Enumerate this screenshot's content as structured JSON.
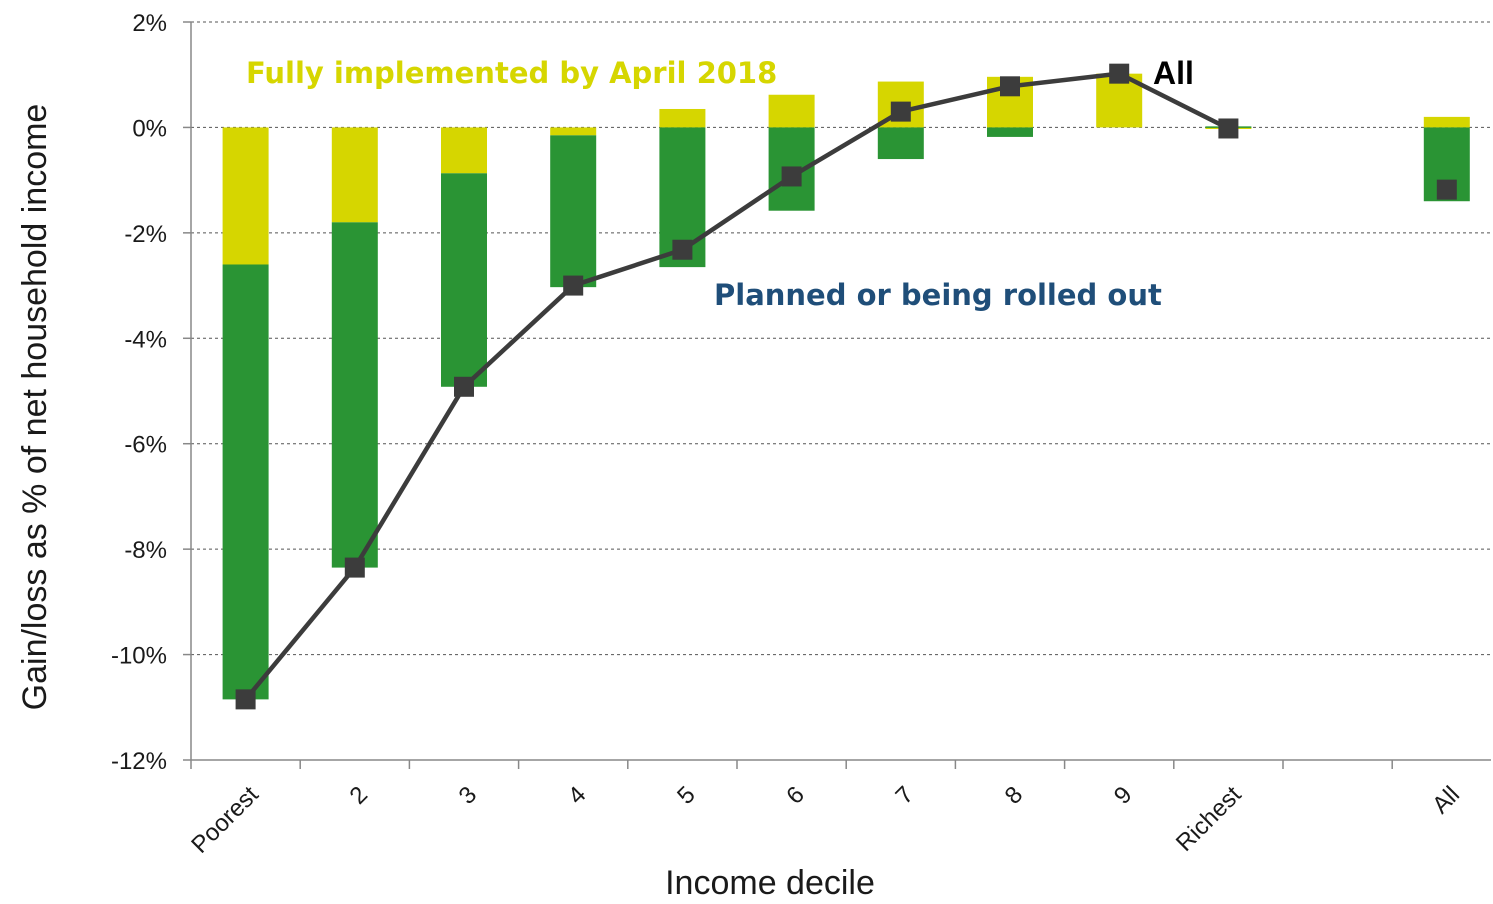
{
  "chart_data": {
    "type": "bar",
    "stacked": true,
    "xlabel": "Income decile",
    "ylabel": "Gain/loss as % of net household income",
    "ylim": [
      -12,
      2
    ],
    "yticks": [
      2,
      0,
      -2,
      -4,
      -6,
      -8,
      -10,
      -12
    ],
    "ytick_labels": [
      "2%",
      "0%",
      "-2%",
      "-4%",
      "-6%",
      "-8%",
      "-10%",
      "-12%"
    ],
    "grid": "horizontal dashed",
    "categories": [
      "Poorest",
      "2",
      "3",
      "4",
      "5",
      "6",
      "7",
      "8",
      "9",
      "Richest",
      "All"
    ],
    "category_slots": [
      0,
      1,
      2,
      3,
      4,
      5,
      6,
      7,
      8,
      9,
      11
    ],
    "series": [
      {
        "name": "Fully implemented by April 2018",
        "color": "#d6d600",
        "values": [
          -2.6,
          -1.8,
          -0.87,
          -0.15,
          0.35,
          0.62,
          0.87,
          0.96,
          1.02,
          -0.03,
          0.2
        ]
      },
      {
        "name": "Planned or being rolled out",
        "color": "#2a9434",
        "values": [
          -8.25,
          -6.55,
          -4.05,
          -2.88,
          -2.65,
          -1.58,
          -0.6,
          -0.18,
          0.0,
          0.02,
          -1.4
        ]
      },
      {
        "name": "All",
        "color": "#3c3c3c",
        "values": [
          -10.85,
          -8.35,
          -4.92,
          -3.0,
          -2.32,
          -0.93,
          0.3,
          0.78,
          1.02,
          -0.02,
          -1.18
        ]
      }
    ],
    "annotations": [
      {
        "text": "Fully implemented by April 2018",
        "color": "#d6d600"
      },
      {
        "text": "Planned or being rolled out",
        "color": "#1f4e79"
      },
      {
        "text": "All",
        "color": "#000000"
      }
    ]
  }
}
